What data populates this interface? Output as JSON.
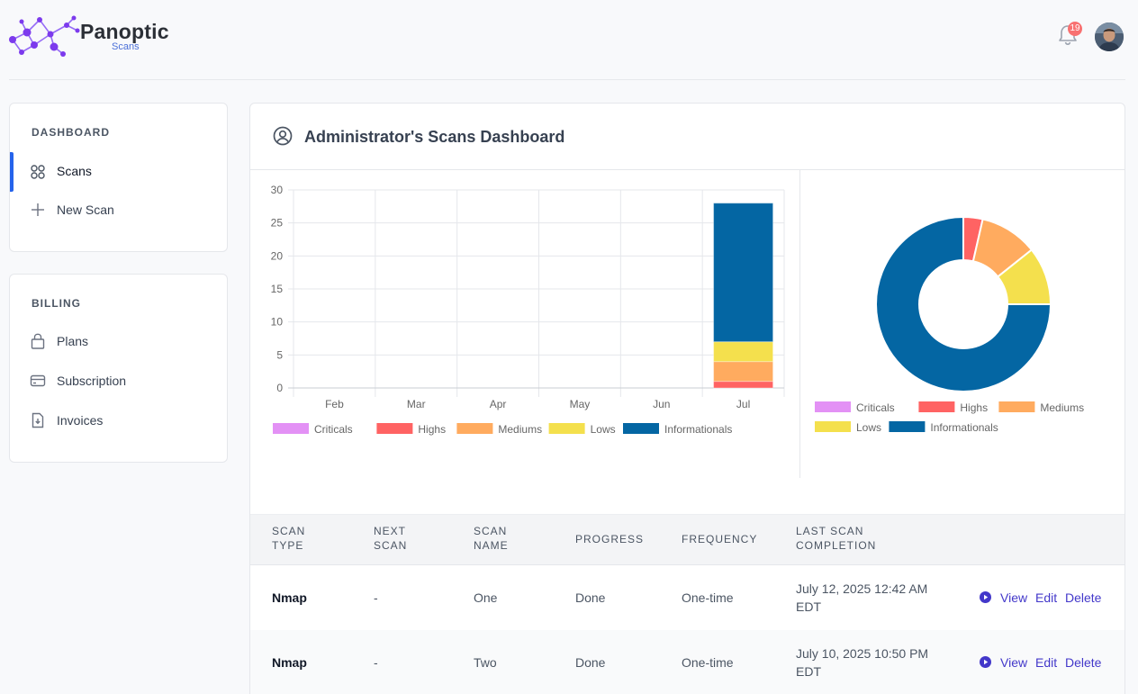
{
  "brand": {
    "name": "Panoptic",
    "sub": "Scans",
    "accent": "#8b5cf6"
  },
  "header": {
    "notifications_count": "19"
  },
  "sidebar": {
    "dashboard_heading": "DASHBOARD",
    "dashboard_items": [
      {
        "label": "Scans",
        "icon": "grid-icon",
        "active": true
      },
      {
        "label": "New Scan",
        "icon": "plus-icon",
        "active": false
      }
    ],
    "billing_heading": "BILLING",
    "billing_items": [
      {
        "label": "Plans",
        "icon": "bag-icon"
      },
      {
        "label": "Subscription",
        "icon": "credit-card-icon"
      },
      {
        "label": "Invoices",
        "icon": "invoice-icon"
      }
    ]
  },
  "main": {
    "title": "Administrator's Scans Dashboard"
  },
  "chart_data": [
    {
      "type": "bar",
      "stacked": true,
      "categories": [
        "Feb",
        "Mar",
        "Apr",
        "May",
        "Jun",
        "Jul"
      ],
      "ylim": [
        0,
        30
      ],
      "yticks": [
        0,
        5,
        10,
        15,
        20,
        25,
        30
      ],
      "grid": true,
      "legend": "bottom",
      "series": [
        {
          "name": "Criticals",
          "color": "#e391f5",
          "values": [
            0,
            0,
            0,
            0,
            0,
            0
          ]
        },
        {
          "name": "Highs",
          "color": "#ff6363",
          "values": [
            0,
            0,
            0,
            0,
            0,
            1
          ]
        },
        {
          "name": "Mediums",
          "color": "#ffab5f",
          "values": [
            0,
            0,
            0,
            0,
            0,
            3
          ]
        },
        {
          "name": "Lows",
          "color": "#f4e04d",
          "values": [
            0,
            0,
            0,
            0,
            0,
            3
          ]
        },
        {
          "name": "Informationals",
          "color": "#0466a3",
          "values": [
            0,
            0,
            0,
            0,
            0,
            21
          ]
        }
      ]
    },
    {
      "type": "pie",
      "donut": true,
      "legend": "bottom",
      "labels": [
        "Criticals",
        "Highs",
        "Mediums",
        "Lows",
        "Informationals"
      ],
      "values": [
        0,
        1,
        3,
        3,
        21
      ],
      "colors": [
        "#e391f5",
        "#ff6363",
        "#ffab5f",
        "#f4e04d",
        "#0466a3"
      ]
    }
  ],
  "table": {
    "headers": {
      "scan_type": [
        "SCAN",
        "TYPE"
      ],
      "next_scan": [
        "NEXT",
        "SCAN"
      ],
      "scan_name": [
        "SCAN",
        "NAME"
      ],
      "progress": "PROGRESS",
      "frequency": "FREQUENCY",
      "last_completion": [
        "LAST SCAN",
        "COMPLETION"
      ]
    },
    "rows": [
      {
        "type": "Nmap",
        "next": "-",
        "name": "One",
        "progress": "Done",
        "frequency": "One-time",
        "last_line1": "July 12, 2025 12:42 AM",
        "last_line2": "EDT",
        "view": "View",
        "edit": "Edit",
        "delete": "Delete"
      },
      {
        "type": "Nmap",
        "next": "-",
        "name": "Two",
        "progress": "Done",
        "frequency": "One-time",
        "last_line1": "July 10, 2025 10:50 PM",
        "last_line2": "EDT",
        "view": "View",
        "edit": "Edit",
        "delete": "Delete"
      }
    ]
  }
}
